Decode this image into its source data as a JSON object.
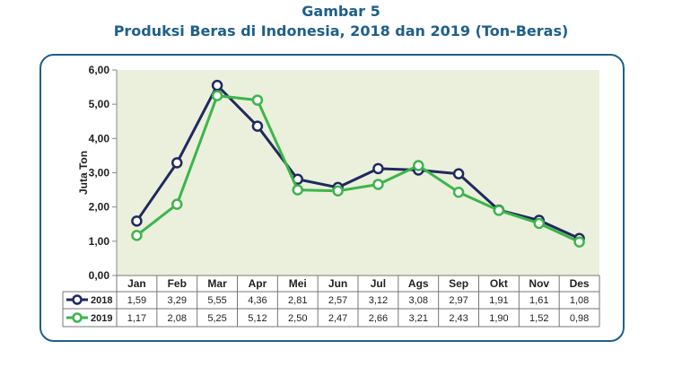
{
  "header": {
    "figure_label": "Gambar 5",
    "title": "Produksi Beras di Indonesia, 2018 dan 2019 (Ton-Beras)"
  },
  "chart_data": {
    "type": "line",
    "title": "Produksi Beras di Indonesia, 2018 dan 2019 (Ton-Beras)",
    "ylabel": "Juta Ton",
    "xlabel": "",
    "categories": [
      "Jan",
      "Feb",
      "Mar",
      "Apr",
      "Mei",
      "Jun",
      "Jul",
      "Ags",
      "Sep",
      "Okt",
      "Nov",
      "Des"
    ],
    "ylim": [
      0,
      6
    ],
    "yticks": [
      "0,00",
      "1,00",
      "2,00",
      "3,00",
      "4,00",
      "5,00",
      "6,00"
    ],
    "grid": false,
    "legend": "data-table-below",
    "plot_background": "#eaf0dc",
    "series": [
      {
        "name": "2018",
        "color": "#1f2a5c",
        "values": [
          1.59,
          3.29,
          5.55,
          4.36,
          2.81,
          2.57,
          3.12,
          3.08,
          2.97,
          1.91,
          1.61,
          1.08
        ],
        "labels": [
          "1,59",
          "3,29",
          "5,55",
          "4,36",
          "2,81",
          "2,57",
          "3,12",
          "3,08",
          "2,97",
          "1,91",
          "1,61",
          "1,08"
        ]
      },
      {
        "name": "2019",
        "color": "#3cb54a",
        "values": [
          1.17,
          2.08,
          5.25,
          5.12,
          2.5,
          2.47,
          2.66,
          3.21,
          2.43,
          1.9,
          1.52,
          0.98
        ],
        "labels": [
          "1,17",
          "2,08",
          "5,25",
          "5,12",
          "2,50",
          "2,47",
          "2,66",
          "3,21",
          "2,43",
          "1,90",
          "1,52",
          "0,98"
        ]
      }
    ]
  }
}
